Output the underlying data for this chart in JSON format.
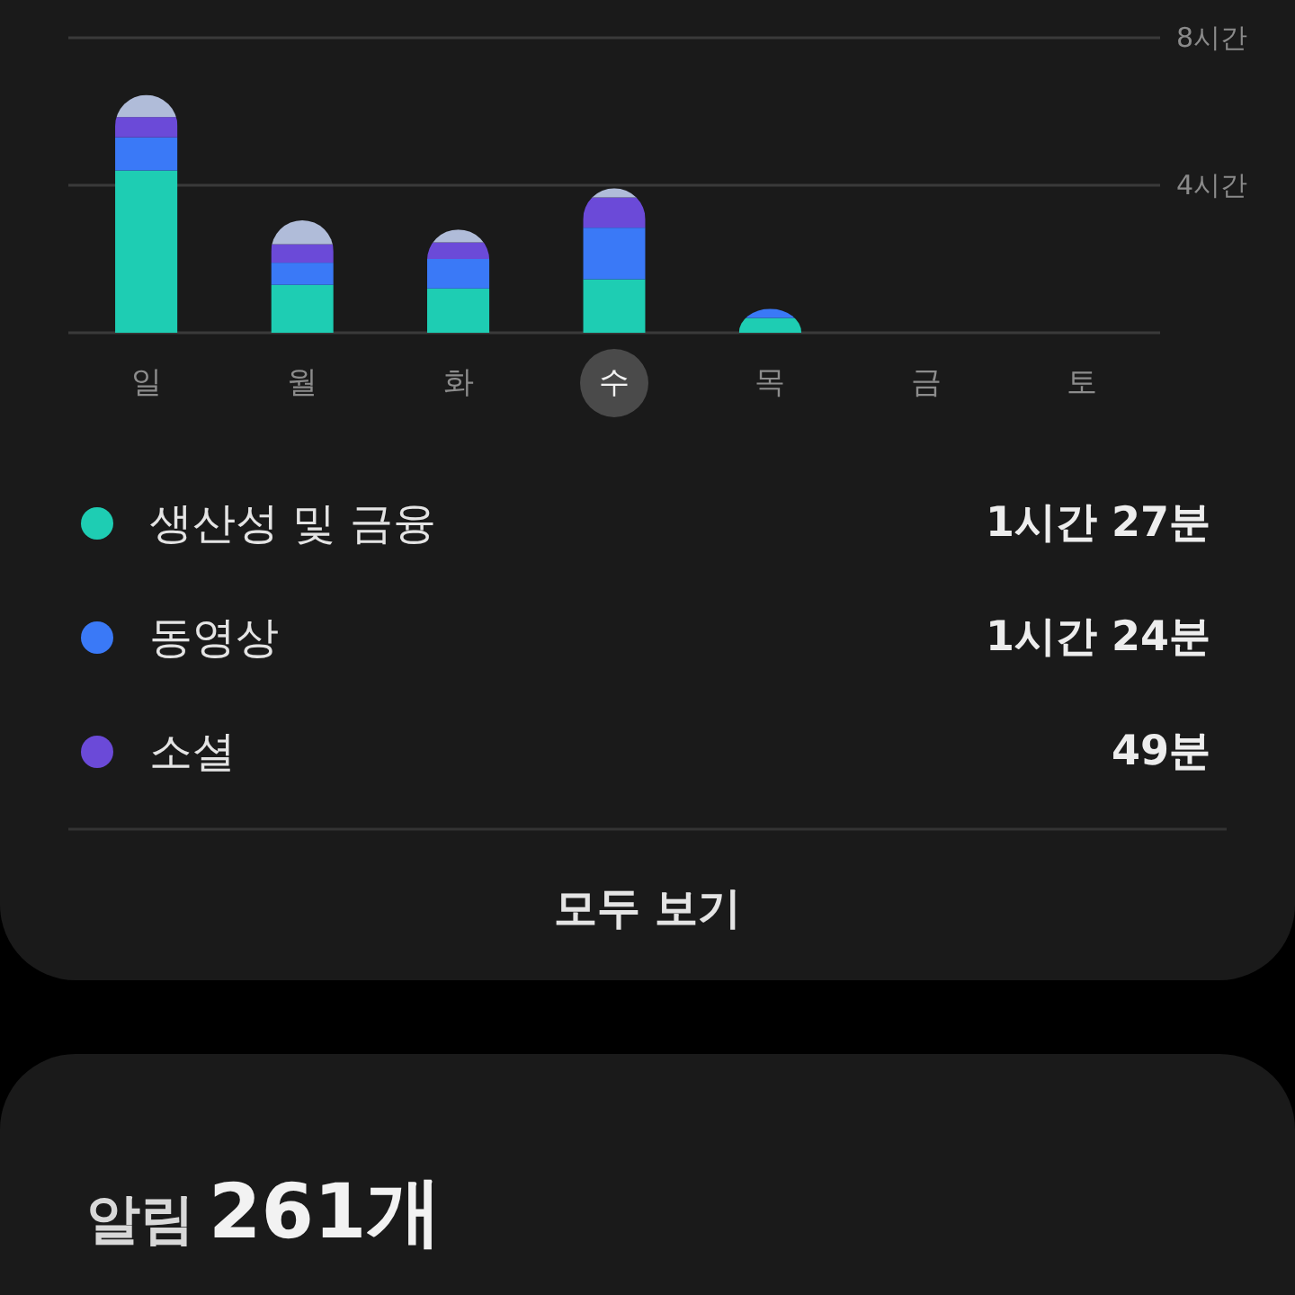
{
  "chart_data": {
    "type": "bar",
    "stacked": true,
    "categories": [
      "일",
      "월",
      "화",
      "수",
      "목",
      "금",
      "토"
    ],
    "series": [
      {
        "name": "생산성 및 금융",
        "color": "#1ecdb3",
        "values": [
          4.4,
          1.3,
          1.2,
          1.45,
          0.4,
          null,
          null
        ]
      },
      {
        "name": "동영상",
        "color": "#3a79f7",
        "values": [
          0.9,
          0.6,
          0.8,
          1.4,
          0.25,
          null,
          null
        ]
      },
      {
        "name": "소셜",
        "color": "#6b4ad8",
        "values": [
          0.55,
          0.5,
          0.45,
          0.82,
          null,
          null,
          null
        ]
      },
      {
        "color": "#b0bcd9",
        "values": [
          0.6,
          0.65,
          0.35,
          0.25,
          null,
          null,
          null
        ]
      }
    ],
    "ylim": [
      0,
      8
    ],
    "yticks": [
      {
        "value": 4,
        "label": "4시간"
      },
      {
        "value": 8,
        "label": "8시간"
      }
    ],
    "grid": "y",
    "legend": "bottom",
    "annotations": [
      "1시간 27분",
      "1시간 24분",
      "49분",
      "모두 보기",
      "알림 261개"
    ]
  }
}
